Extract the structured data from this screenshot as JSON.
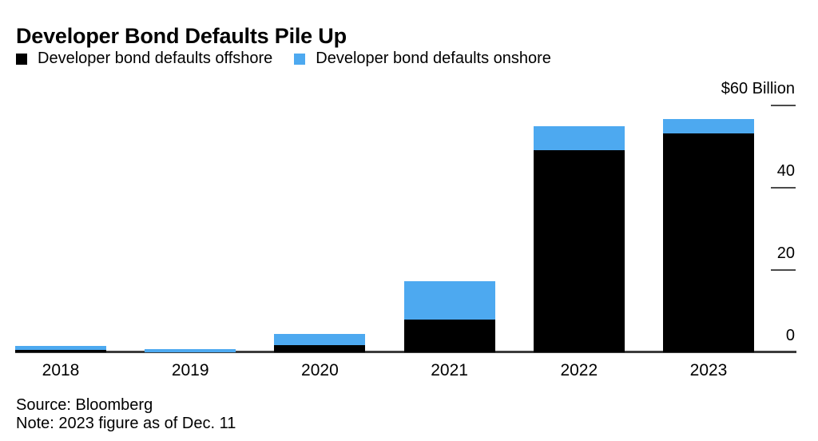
{
  "title": "Developer Bond Defaults Pile Up",
  "chart_data": {
    "type": "bar",
    "stacked": true,
    "title": "Developer Bond Defaults Pile Up",
    "categories": [
      "2018",
      "2019",
      "2020",
      "2021",
      "2022",
      "2023"
    ],
    "series": [
      {
        "name": "Developer bond defaults offshore",
        "color": "#000000",
        "values": [
          0.5,
          0,
          1.7,
          8.0,
          49.1,
          53.3
        ]
      },
      {
        "name": "Developer bond defaults onshore",
        "color": "#4DA9F0",
        "values": [
          1.0,
          0.7,
          2.7,
          9.3,
          5.8,
          3.4
        ]
      }
    ],
    "y_axis": {
      "side": "right",
      "unit_label": "$60 Billion",
      "ylim": [
        0,
        60
      ],
      "ticks": [
        {
          "value": 60,
          "label": "$60 Billion"
        },
        {
          "value": 40,
          "label": "40"
        },
        {
          "value": 20,
          "label": "20"
        },
        {
          "value": 0,
          "label": "0"
        }
      ]
    },
    "grid": false,
    "legend_position": "top-left"
  },
  "footer": {
    "source": "Source: Bloomberg",
    "note": "Note: 2023 figure as of Dec. 11"
  }
}
